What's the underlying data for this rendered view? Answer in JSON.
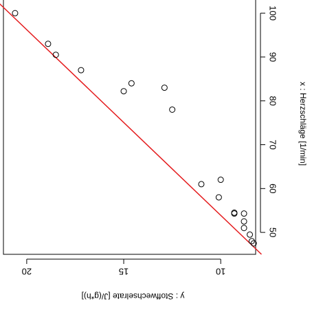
{
  "chart_data": {
    "type": "scatter",
    "orientation": "rotated-180",
    "xlabel": "x : Herzschläge [1/min]",
    "ylabel": "y : Stoffwechselrate [J/(g*h)]",
    "x_axis_side": "right",
    "y_axis_side": "bottom",
    "xlim": [
      45,
      103
    ],
    "ylim": [
      8.2,
      21.2
    ],
    "x_ticks": [
      50,
      60,
      70,
      80,
      90,
      100
    ],
    "y_ticks": [
      10,
      15,
      20
    ],
    "x_tick_labels": [
      "50",
      "60",
      "70",
      "80",
      "90",
      "100"
    ],
    "y_tick_labels": [
      "10",
      "15",
      "20"
    ],
    "points": [
      {
        "x": 100.0,
        "y": 20.6
      },
      {
        "x": 93.0,
        "y": 18.9
      },
      {
        "x": 90.5,
        "y": 18.5
      },
      {
        "x": 87.0,
        "y": 17.2
      },
      {
        "x": 82.2,
        "y": 15.0
      },
      {
        "x": 84.0,
        "y": 14.6
      },
      {
        "x": 83.0,
        "y": 12.9
      },
      {
        "x": 78.0,
        "y": 12.5
      },
      {
        "x": 61.0,
        "y": 11.0
      },
      {
        "x": 62.0,
        "y": 10.0
      },
      {
        "x": 58.0,
        "y": 10.1
      },
      {
        "x": 54.5,
        "y": 9.3
      },
      {
        "x": 54.3,
        "y": 9.3
      },
      {
        "x": 54.3,
        "y": 8.8
      },
      {
        "x": 52.5,
        "y": 8.8
      },
      {
        "x": 51.0,
        "y": 8.8
      },
      {
        "x": 49.5,
        "y": 8.5
      },
      {
        "x": 48.0,
        "y": 8.4
      },
      {
        "x": 47.5,
        "y": 8.3
      }
    ],
    "regression_line": {
      "color": "#e41a1c",
      "x": [
        45,
        103
      ],
      "y": [
        7.9,
        21.6
      ]
    },
    "marker": "open-circle",
    "grid": false
  }
}
